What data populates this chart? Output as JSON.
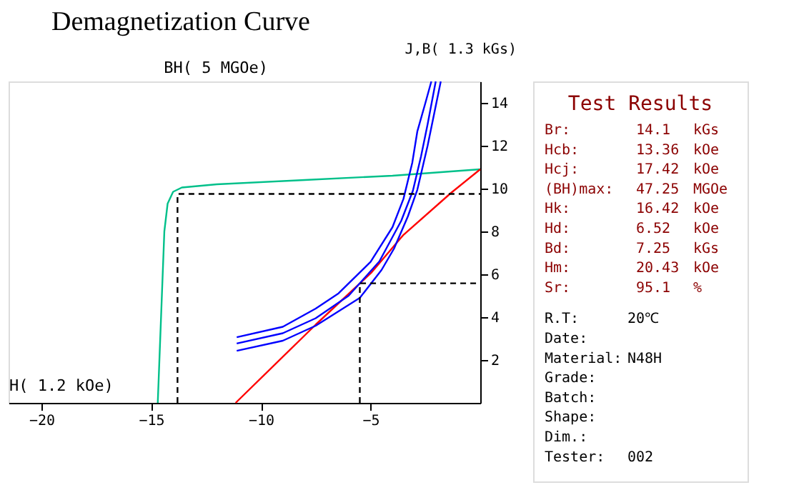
{
  "chart_data": [
    {
      "type": "line",
      "title": "Demagnetization Curve",
      "xlabel": "H( 1.2 kOe)",
      "ylabel": "J,B( 1.3 kGs)",
      "x2label": "BH( 5 MGOe)",
      "xlim": [
        -21.5,
        0
      ],
      "xticks": [
        -20,
        -15,
        -10,
        -5
      ],
      "ylim": [
        0,
        15
      ],
      "yticks": [
        2,
        4,
        6,
        8,
        10,
        12,
        14
      ],
      "grid": false,
      "series": [
        {
          "color": "#00c08a",
          "x": [
            -14.7,
            -14.55,
            -14.4,
            -14.25,
            -14.0,
            -13.6,
            -12,
            -8,
            -4,
            0
          ],
          "values": [
            0,
            4,
            8,
            9.3,
            9.85,
            10.05,
            10.2,
            10.4,
            10.6,
            10.9
          ]
        },
        {
          "color": "#ff0000",
          "x": [
            -11.15,
            -7.5,
            -4.98,
            -3.5,
            -1.33,
            0
          ],
          "values": [
            0,
            3.65,
            6.06,
            7.84,
            9.8,
            10.9
          ]
        },
        {
          "color": "#0000ff",
          "x": [
            -11.1,
            -9,
            -7.5,
            -6.46,
            -5,
            -4,
            -3.5,
            -3.1,
            -2.87,
            -2.5,
            -2.23
          ],
          "values": [
            3.06,
            3.55,
            4.4,
            5.11,
            6.58,
            8.2,
            9.52,
            11.2,
            12.66,
            14,
            15
          ]
        },
        {
          "color": "#0000ff",
          "x": [
            -11.1,
            -9,
            -7.5,
            -6,
            -4.6,
            -3.6,
            -3.07,
            -2.7,
            -2.4,
            -2.03
          ],
          "values": [
            2.77,
            3.25,
            3.95,
            5.0,
            6.6,
            8.5,
            9.9,
            11.5,
            13,
            15
          ]
        },
        {
          "color": "#0000ff",
          "x": [
            -11.1,
            -9,
            -7.5,
            -5.49,
            -4.5,
            -3.93,
            -3.3,
            -2.87,
            -2.4,
            -2.1,
            -1.8
          ],
          "values": [
            2.43,
            2.9,
            3.6,
            4.9,
            6.2,
            7.2,
            8.7,
            9.94,
            12,
            13.5,
            15
          ]
        },
        {
          "color": "#000000",
          "line_style": "dashed",
          "x": [
            -13.8,
            -13.8,
            0
          ],
          "values": [
            0,
            9.75,
            9.75
          ]
        },
        {
          "color": "#000000",
          "line_style": "dashed",
          "x": [
            -5.49,
            -5.49,
            0
          ],
          "values": [
            0,
            5.58,
            5.58
          ]
        }
      ]
    },
    {
      "type": "other",
      "title": "Test Results",
      "annotations": [
        "Br:\t14.1\tkGs",
        "Hcb:\t13.36\tkOe",
        "Hcj:\t17.42\tkOe",
        "(BH)max:\t47.25\tMGOe",
        "Hk:\t16.42\tkOe",
        "Hd:\t6.52\tkOe",
        "Bd:\t7.25\tkGs",
        "Hm:\t20.43\tkOe",
        "Sr:\t95.1\t%",
        "R.T:\t20℃",
        "Date:",
        "Material:\tN48H",
        "Grade:",
        "Batch:",
        "Shape:",
        "Dim.:",
        "Tester:\t002"
      ],
      "colors": [
        "#8b0000",
        "#8b0000",
        "#8b0000",
        "#8b0000",
        "#8b0000",
        "#8b0000",
        "#8b0000",
        "#8b0000",
        "#8b0000",
        "#000000",
        "#000000",
        "#000000",
        "#000000",
        "#000000",
        "#000000",
        "#000000",
        "#000000"
      ]
    }
  ]
}
